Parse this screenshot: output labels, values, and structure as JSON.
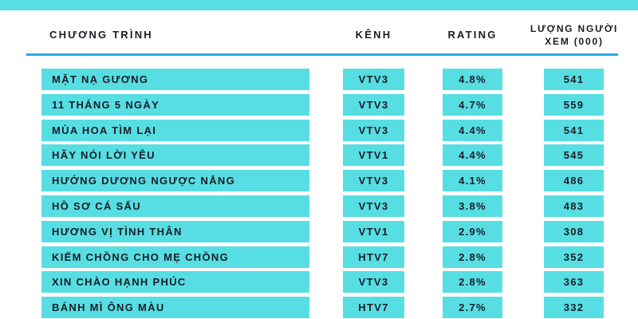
{
  "colors": {
    "bar": "#57dee3",
    "rule_line": "#2ba9e0",
    "text": "#1b1c26",
    "background": "#ffffff"
  },
  "chart_data": {
    "type": "table",
    "title": "",
    "columns": [
      "CHƯƠNG TRÌNH",
      "KÊNH",
      "RATING",
      "LƯỢNG NGƯỜI XEM (000)"
    ],
    "rows": [
      {
        "program": "MẶT NẠ GƯƠNG",
        "channel": "VTV3",
        "rating": "4.8%",
        "viewers": "541"
      },
      {
        "program": "11 THÁNG 5 NGÀY",
        "channel": "VTV3",
        "rating": "4.7%",
        "viewers": "559"
      },
      {
        "program": "MÙA HOA TÌM LẠI",
        "channel": "VTV3",
        "rating": "4.4%",
        "viewers": "541"
      },
      {
        "program": "HÃY NÓI LỜI YÊU",
        "channel": "VTV1",
        "rating": "4.4%",
        "viewers": "545"
      },
      {
        "program": "HƯỚNG DƯƠNG NGƯỢC NẮNG",
        "channel": "VTV3",
        "rating": "4.1%",
        "viewers": "486"
      },
      {
        "program": "HỒ SƠ CÁ SẤU",
        "channel": "VTV3",
        "rating": "3.8%",
        "viewers": "483"
      },
      {
        "program": "HƯƠNG VỊ TÌNH THÂN",
        "channel": "VTV1",
        "rating": "2.9%",
        "viewers": "308"
      },
      {
        "program": "KIẾM CHỒNG CHO MẸ CHỒNG",
        "channel": "HTV7",
        "rating": "2.8%",
        "viewers": "352"
      },
      {
        "program": "XIN CHÀO HẠNH PHÚC",
        "channel": "VTV3",
        "rating": "2.8%",
        "viewers": "363"
      },
      {
        "program": "BÁNH MÌ ÔNG MÀU",
        "channel": "HTV7",
        "rating": "2.7%",
        "viewers": "332"
      }
    ]
  }
}
